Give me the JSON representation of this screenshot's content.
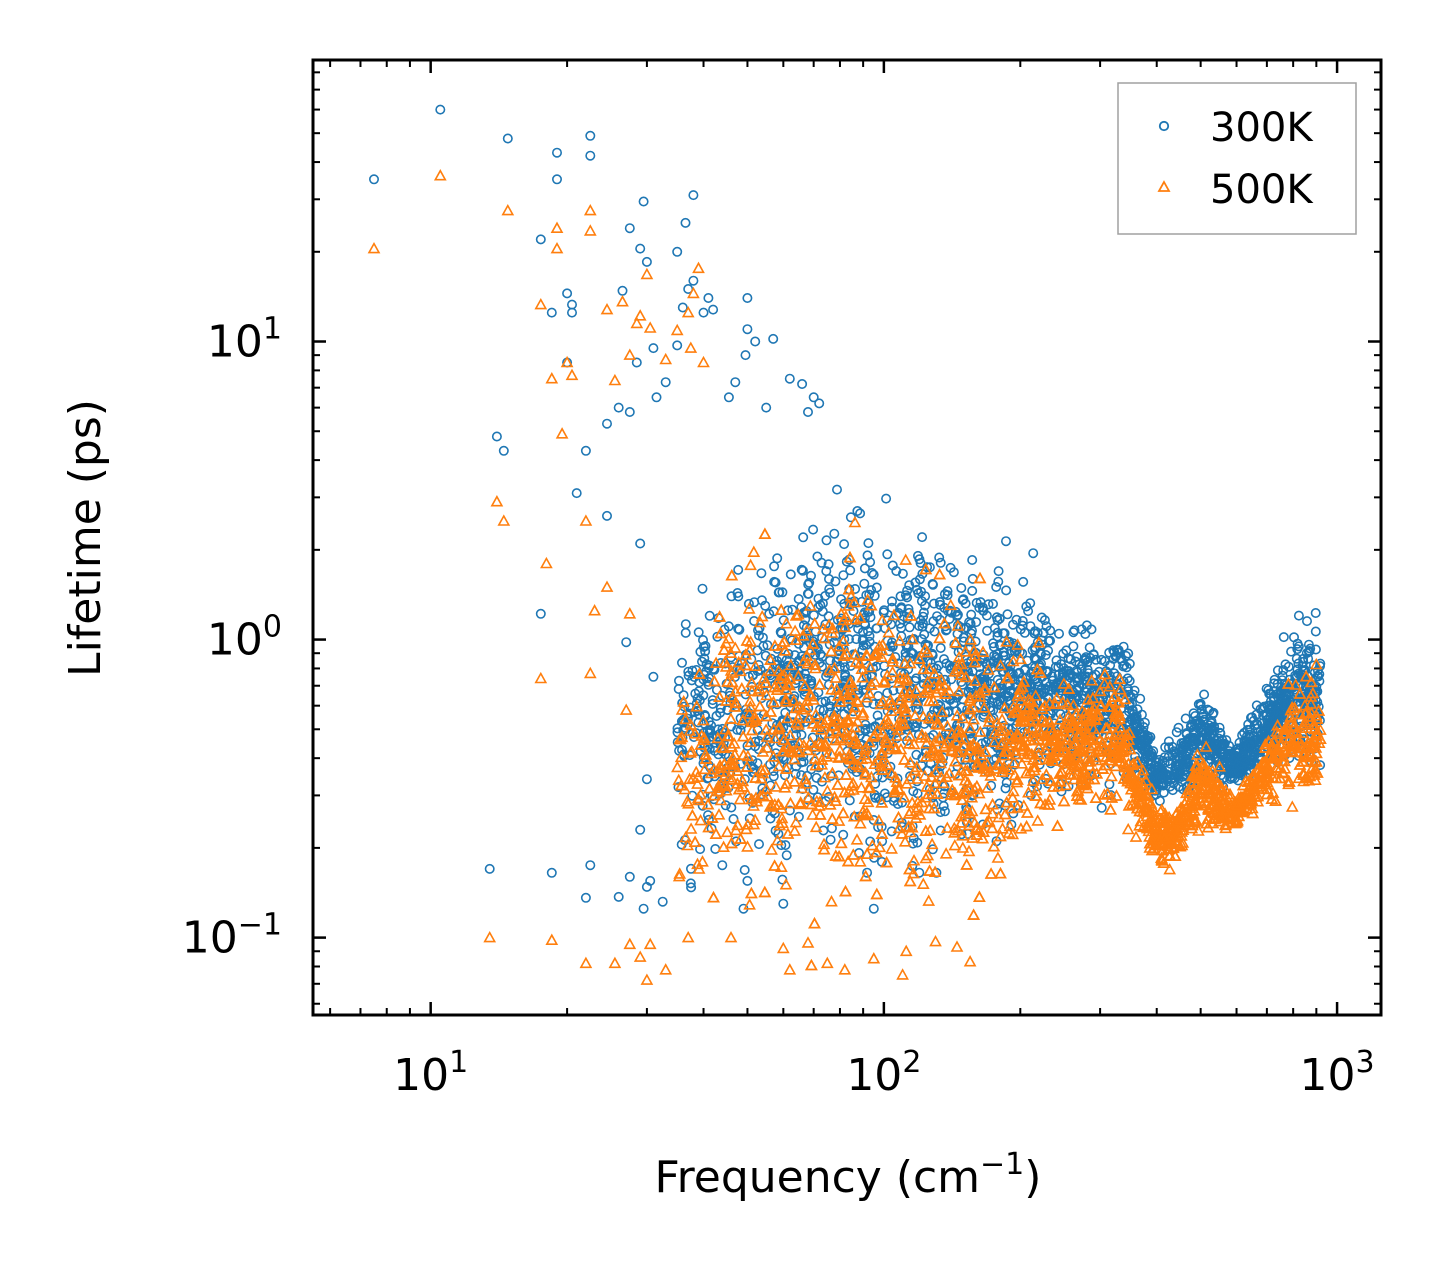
{
  "chart_data": {
    "type": "scatter",
    "xscale": "log",
    "yscale": "log",
    "xlabel": "Frequency (cm",
    "xlabel_sup": "−1",
    "xlabel_end": ")",
    "ylabel": "Lifetime (ps)",
    "xlim": [
      5.5,
      1250
    ],
    "ylim": [
      0.055,
      88
    ],
    "x_ticks": [
      {
        "value": 10,
        "base": "10",
        "exp": "1"
      },
      {
        "value": 100,
        "base": "10",
        "exp": "2"
      },
      {
        "value": 1000,
        "base": "10",
        "exp": "3"
      }
    ],
    "y_ticks": [
      {
        "value": 0.1,
        "base": "10",
        "exp": "−1"
      },
      {
        "value": 1,
        "base": "10",
        "exp": "0"
      },
      {
        "value": 10,
        "base": "10",
        "exp": "1"
      }
    ],
    "legend": {
      "position": "upper-right"
    },
    "series": [
      {
        "name": "300K",
        "marker": "circle",
        "color": "#1f77b4",
        "points": [
          [
            7.5,
            35
          ],
          [
            10.5,
            60
          ],
          [
            14.8,
            48
          ],
          [
            19,
            43
          ],
          [
            19,
            35
          ],
          [
            22.5,
            49
          ],
          [
            22.5,
            42
          ],
          [
            17.5,
            22
          ],
          [
            18.5,
            12.5
          ],
          [
            20,
            14.5
          ],
          [
            20.5,
            13.3
          ],
          [
            20.5,
            12.5
          ],
          [
            26.5,
            14.8
          ],
          [
            27.5,
            24
          ],
          [
            29,
            20.5
          ],
          [
            30,
            18.5
          ],
          [
            29.5,
            29.5
          ],
          [
            38,
            31
          ],
          [
            36.5,
            25
          ],
          [
            35,
            20
          ],
          [
            37,
            15
          ],
          [
            38,
            16
          ],
          [
            36,
            13
          ],
          [
            41,
            14
          ],
          [
            42,
            12.8
          ],
          [
            40,
            12.5
          ],
          [
            50,
            14
          ],
          [
            50,
            11
          ],
          [
            52,
            10
          ],
          [
            57,
            10.2
          ],
          [
            49.5,
            9
          ],
          [
            47,
            7.3
          ],
          [
            45.5,
            6.5
          ],
          [
            55,
            6
          ],
          [
            62,
            7.5
          ],
          [
            66,
            7.2
          ],
          [
            70,
            6.5
          ],
          [
            72,
            6.2
          ],
          [
            68,
            5.8
          ],
          [
            31,
            9.5
          ],
          [
            35,
            9.7
          ],
          [
            28.5,
            8.5
          ],
          [
            20,
            8.5
          ],
          [
            33,
            7.3
          ],
          [
            31.5,
            6.5
          ],
          [
            26,
            6
          ],
          [
            27.5,
            5.8
          ],
          [
            24.5,
            5.3
          ],
          [
            14,
            4.8
          ],
          [
            14.5,
            4.3
          ],
          [
            22,
            4.3
          ],
          [
            21,
            3.1
          ],
          [
            24.5,
            2.6
          ],
          [
            29,
            2.1
          ],
          [
            17.5,
            1.22
          ],
          [
            27,
            0.98
          ],
          [
            31,
            0.75
          ],
          [
            30,
            0.34
          ],
          [
            29,
            0.23
          ],
          [
            13.5,
            0.17
          ],
          [
            18.5,
            0.165
          ],
          [
            22.5,
            0.175
          ],
          [
            22,
            0.136
          ],
          [
            26,
            0.137
          ],
          [
            30,
            0.148
          ],
          [
            29.5,
            0.125
          ],
          [
            27.5,
            0.16
          ],
          [
            32.5,
            0.132
          ],
          [
            30.5,
            0.155
          ],
          [
            37.5,
            0.152
          ],
          [
            44,
            0.175
          ],
          [
            50,
            0.155
          ],
          [
            49,
            0.125
          ],
          [
            95,
            0.125
          ],
          [
            60,
            0.13
          ]
        ]
      },
      {
        "name": "500K",
        "marker": "triangle",
        "color": "#ff7f0e",
        "points": [
          [
            7.5,
            20.5
          ],
          [
            10.5,
            36
          ],
          [
            14.8,
            27.5
          ],
          [
            19,
            24
          ],
          [
            19,
            20.5
          ],
          [
            22.5,
            27.5
          ],
          [
            22.5,
            23.5
          ],
          [
            24.5,
            12.8
          ],
          [
            28.5,
            11.5
          ],
          [
            30,
            16.8
          ],
          [
            26.5,
            13.6
          ],
          [
            17.5,
            13.3
          ],
          [
            20,
            8.5
          ],
          [
            20.5,
            7.7
          ],
          [
            18.5,
            7.5
          ],
          [
            25.5,
            7.4
          ],
          [
            27.5,
            9
          ],
          [
            29,
            12.2
          ],
          [
            30.5,
            11.1
          ],
          [
            35,
            10.9
          ],
          [
            39,
            17.6
          ],
          [
            38,
            14.5
          ],
          [
            37,
            12.5
          ],
          [
            33,
            8.7
          ],
          [
            37.5,
            9.5
          ],
          [
            40,
            8.5
          ],
          [
            19.5,
            4.9
          ],
          [
            14,
            2.9
          ],
          [
            14.5,
            2.5
          ],
          [
            18,
            1.8
          ],
          [
            22,
            2.5
          ],
          [
            24.5,
            1.5
          ],
          [
            23,
            1.25
          ],
          [
            27.5,
            1.22
          ],
          [
            17.5,
            0.74
          ],
          [
            22.5,
            0.77
          ],
          [
            27,
            0.58
          ],
          [
            36.5,
            0.54
          ],
          [
            13.5,
            0.1
          ],
          [
            18.5,
            0.098
          ],
          [
            22,
            0.082
          ],
          [
            25.5,
            0.082
          ],
          [
            27.5,
            0.095
          ],
          [
            29,
            0.086
          ],
          [
            30,
            0.072
          ],
          [
            30.5,
            0.095
          ],
          [
            33,
            0.078
          ],
          [
            37,
            0.1
          ],
          [
            46,
            0.1
          ],
          [
            60,
            0.092
          ],
          [
            62,
            0.078
          ],
          [
            68,
            0.096
          ],
          [
            75,
            0.082
          ],
          [
            82,
            0.078
          ],
          [
            95,
            0.085
          ],
          [
            110,
            0.075
          ],
          [
            155,
            0.083
          ],
          [
            112,
            0.09
          ],
          [
            130,
            0.097
          ],
          [
            145,
            0.093
          ]
        ]
      }
    ]
  }
}
